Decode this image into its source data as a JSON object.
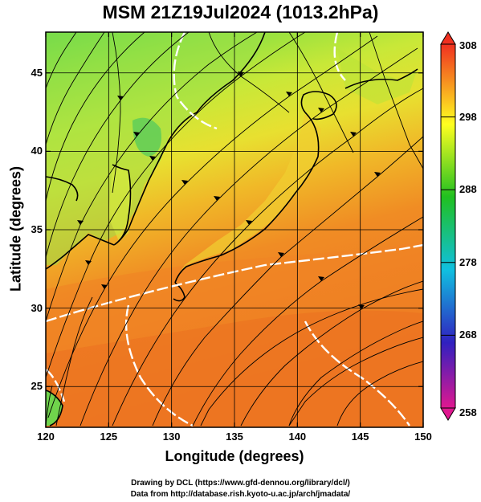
{
  "title": "MSM 21Z19Jul2024 (1013.2hPa)",
  "x_axis": {
    "label": "Longitude (degrees)",
    "ticks": [
      "120",
      "125",
      "130",
      "135",
      "140",
      "145",
      "150"
    ],
    "range": [
      120,
      150
    ]
  },
  "y_axis": {
    "label": "Latitude  (degrees)",
    "ticks": [
      "25",
      "30",
      "35",
      "40",
      "45"
    ],
    "range": [
      22.4,
      47.6
    ]
  },
  "colorbar": {
    "ticks": [
      "308",
      "298",
      "288",
      "278",
      "268",
      "258"
    ],
    "range": [
      258,
      308
    ],
    "colors": [
      "#e01890",
      "#3020c0",
      "#10c0e0",
      "#20c020",
      "#ffff20",
      "#f03020"
    ]
  },
  "credits": {
    "line1": "Drawing by DCL (https://www.gfd-dennou.org/library/dcl/)",
    "line2": "Data from http://database.rish.kyoto-u.ac.jp/arch/jmadata/"
  }
}
